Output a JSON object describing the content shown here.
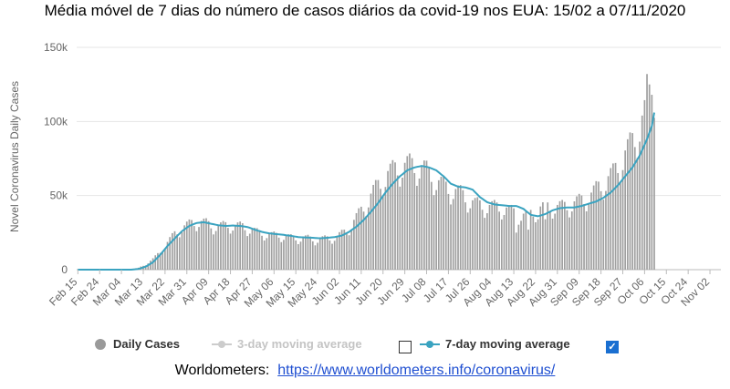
{
  "header": {
    "title": "Média móvel de 7 dias do número de casos diários da covid-19 nos EUA: 15/02 a 07/11/2020"
  },
  "chart_data": {
    "type": "bar",
    "ylabel": "Novel Coronavirus Daily Cases",
    "ylim": [
      0,
      150000
    ],
    "y_ticks": [
      0,
      50000,
      100000,
      150000
    ],
    "y_tick_labels": [
      "0",
      "50k",
      "100k",
      "150k"
    ],
    "x_tick_labels": [
      "Feb 15",
      "Feb 24",
      "Mar 04",
      "Mar 13",
      "Mar 22",
      "Mar 31",
      "Apr 09",
      "Apr 18",
      "Apr 27",
      "May 06",
      "May 15",
      "May 24",
      "Jun 02",
      "Jun 11",
      "Jun 20",
      "Jun 29",
      "Jul 08",
      "Jul 17",
      "Jul 26",
      "Aug 04",
      "Aug 13",
      "Aug 22",
      "Aug 31",
      "Sep 09",
      "Sep 18",
      "Sep 27",
      "Oct 06",
      "Oct 15",
      "Oct 24",
      "Nov 02"
    ],
    "x_tick_interval_days": 9,
    "bar_color": "#a0a0a0",
    "line_color": "#3aa3c0",
    "grid": "horizontal",
    "series": [
      {
        "name": "Daily Cases",
        "type": "bar",
        "anchors": [
          [
            0,
            0
          ],
          [
            18,
            0
          ],
          [
            22,
            300
          ],
          [
            25,
            1200
          ],
          [
            28,
            3500
          ],
          [
            31,
            7000
          ],
          [
            34,
            12000
          ],
          [
            37,
            18000
          ],
          [
            40,
            24000
          ],
          [
            43,
            28000
          ],
          [
            47,
            31000
          ],
          [
            50,
            32000
          ],
          [
            53,
            31000
          ],
          [
            56,
            29000
          ],
          [
            59,
            29000
          ],
          [
            62,
            30000
          ],
          [
            65,
            29000
          ],
          [
            68,
            29000
          ],
          [
            71,
            27000
          ],
          [
            74,
            25000
          ],
          [
            77,
            24000
          ],
          [
            80,
            23000
          ],
          [
            83,
            23000
          ],
          [
            86,
            22000
          ],
          [
            89,
            21000
          ],
          [
            92,
            21000
          ],
          [
            95,
            21000
          ],
          [
            98,
            20000
          ],
          [
            101,
            20500
          ],
          [
            104,
            21000
          ],
          [
            107,
            22000
          ],
          [
            110,
            25000
          ],
          [
            113,
            30000
          ],
          [
            116,
            37000
          ],
          [
            119,
            44000
          ],
          [
            122,
            52000
          ],
          [
            125,
            58000
          ],
          [
            128,
            64000
          ],
          [
            131,
            67000
          ],
          [
            134,
            69000
          ],
          [
            137,
            70000
          ],
          [
            140,
            69000
          ],
          [
            143,
            67000
          ],
          [
            146,
            63000
          ],
          [
            149,
            58000
          ],
          [
            152,
            55000
          ],
          [
            155,
            53000
          ],
          [
            158,
            51000
          ],
          [
            161,
            47000
          ],
          [
            164,
            44000
          ],
          [
            167,
            43000
          ],
          [
            170,
            42000
          ],
          [
            173,
            42000
          ],
          [
            176,
            41000
          ],
          [
            179,
            39000
          ],
          [
            182,
            37000
          ],
          [
            185,
            36000
          ],
          [
            188,
            38000
          ],
          [
            191,
            41000
          ],
          [
            194,
            42000
          ],
          [
            197,
            42000
          ],
          [
            200,
            42000
          ],
          [
            203,
            43000
          ],
          [
            206,
            45000
          ],
          [
            209,
            47000
          ],
          [
            212,
            50000
          ],
          [
            215,
            55000
          ],
          [
            218,
            59000
          ],
          [
            221,
            64000
          ],
          [
            224,
            72000
          ],
          [
            227,
            80000
          ],
          [
            230,
            88000
          ],
          [
            233,
            100000
          ],
          [
            236,
            112000
          ],
          [
            238,
            125000
          ]
        ],
        "spikes": [
          [
            181,
            25000
          ],
          [
            186,
            27000
          ],
          [
            190,
            34000
          ],
          [
            193,
            34000
          ],
          [
            235,
            132000
          ],
          [
            236,
            125000
          ],
          [
            237,
            118000
          ]
        ]
      },
      {
        "name": "7-day moving average",
        "type": "line",
        "anchors": [
          [
            0,
            0
          ],
          [
            22,
            0
          ],
          [
            25,
            500
          ],
          [
            28,
            2000
          ],
          [
            31,
            5000
          ],
          [
            34,
            10000
          ],
          [
            37,
            16000
          ],
          [
            40,
            21000
          ],
          [
            43,
            26000
          ],
          [
            46,
            29500
          ],
          [
            49,
            31500
          ],
          [
            52,
            32000
          ],
          [
            55,
            31000
          ],
          [
            58,
            30000
          ],
          [
            61,
            29500
          ],
          [
            64,
            29800
          ],
          [
            67,
            29500
          ],
          [
            70,
            28800
          ],
          [
            73,
            27000
          ],
          [
            76,
            25500
          ],
          [
            79,
            24500
          ],
          [
            82,
            24000
          ],
          [
            85,
            23500
          ],
          [
            88,
            22800
          ],
          [
            91,
            22000
          ],
          [
            94,
            21700
          ],
          [
            97,
            21500
          ],
          [
            100,
            21200
          ],
          [
            103,
            21500
          ],
          [
            106,
            22000
          ],
          [
            109,
            23000
          ],
          [
            112,
            25500
          ],
          [
            115,
            29000
          ],
          [
            118,
            33500
          ],
          [
            121,
            39000
          ],
          [
            124,
            45000
          ],
          [
            127,
            52000
          ],
          [
            130,
            58000
          ],
          [
            133,
            63000
          ],
          [
            136,
            67000
          ],
          [
            139,
            69000
          ],
          [
            142,
            70000
          ],
          [
            145,
            69000
          ],
          [
            148,
            67000
          ],
          [
            151,
            63000
          ],
          [
            154,
            58000
          ],
          [
            157,
            56000
          ],
          [
            160,
            55500
          ],
          [
            163,
            54000
          ],
          [
            166,
            49000
          ],
          [
            169,
            45500
          ],
          [
            172,
            44000
          ],
          [
            175,
            43500
          ],
          [
            178,
            43000
          ],
          [
            181,
            43000
          ],
          [
            184,
            41000
          ],
          [
            187,
            37000
          ],
          [
            190,
            36000
          ],
          [
            193,
            37500
          ],
          [
            196,
            40000
          ],
          [
            199,
            41500
          ],
          [
            202,
            42000
          ],
          [
            205,
            42000
          ],
          [
            208,
            43000
          ],
          [
            211,
            44500
          ],
          [
            214,
            46000
          ],
          [
            217,
            48500
          ],
          [
            220,
            52000
          ],
          [
            223,
            57000
          ],
          [
            226,
            63000
          ],
          [
            229,
            69000
          ],
          [
            232,
            77000
          ],
          [
            235,
            88000
          ],
          [
            237,
            97000
          ],
          [
            238,
            106000
          ]
        ]
      }
    ]
  },
  "legend": {
    "daily_cases": "Daily Cases",
    "three_day": "3-day moving average",
    "seven_day": "7-day moving average",
    "checkmark": "✓"
  },
  "source": {
    "label": "Worldometers:",
    "url": "https://www.worldometers.info/coronavirus/"
  }
}
